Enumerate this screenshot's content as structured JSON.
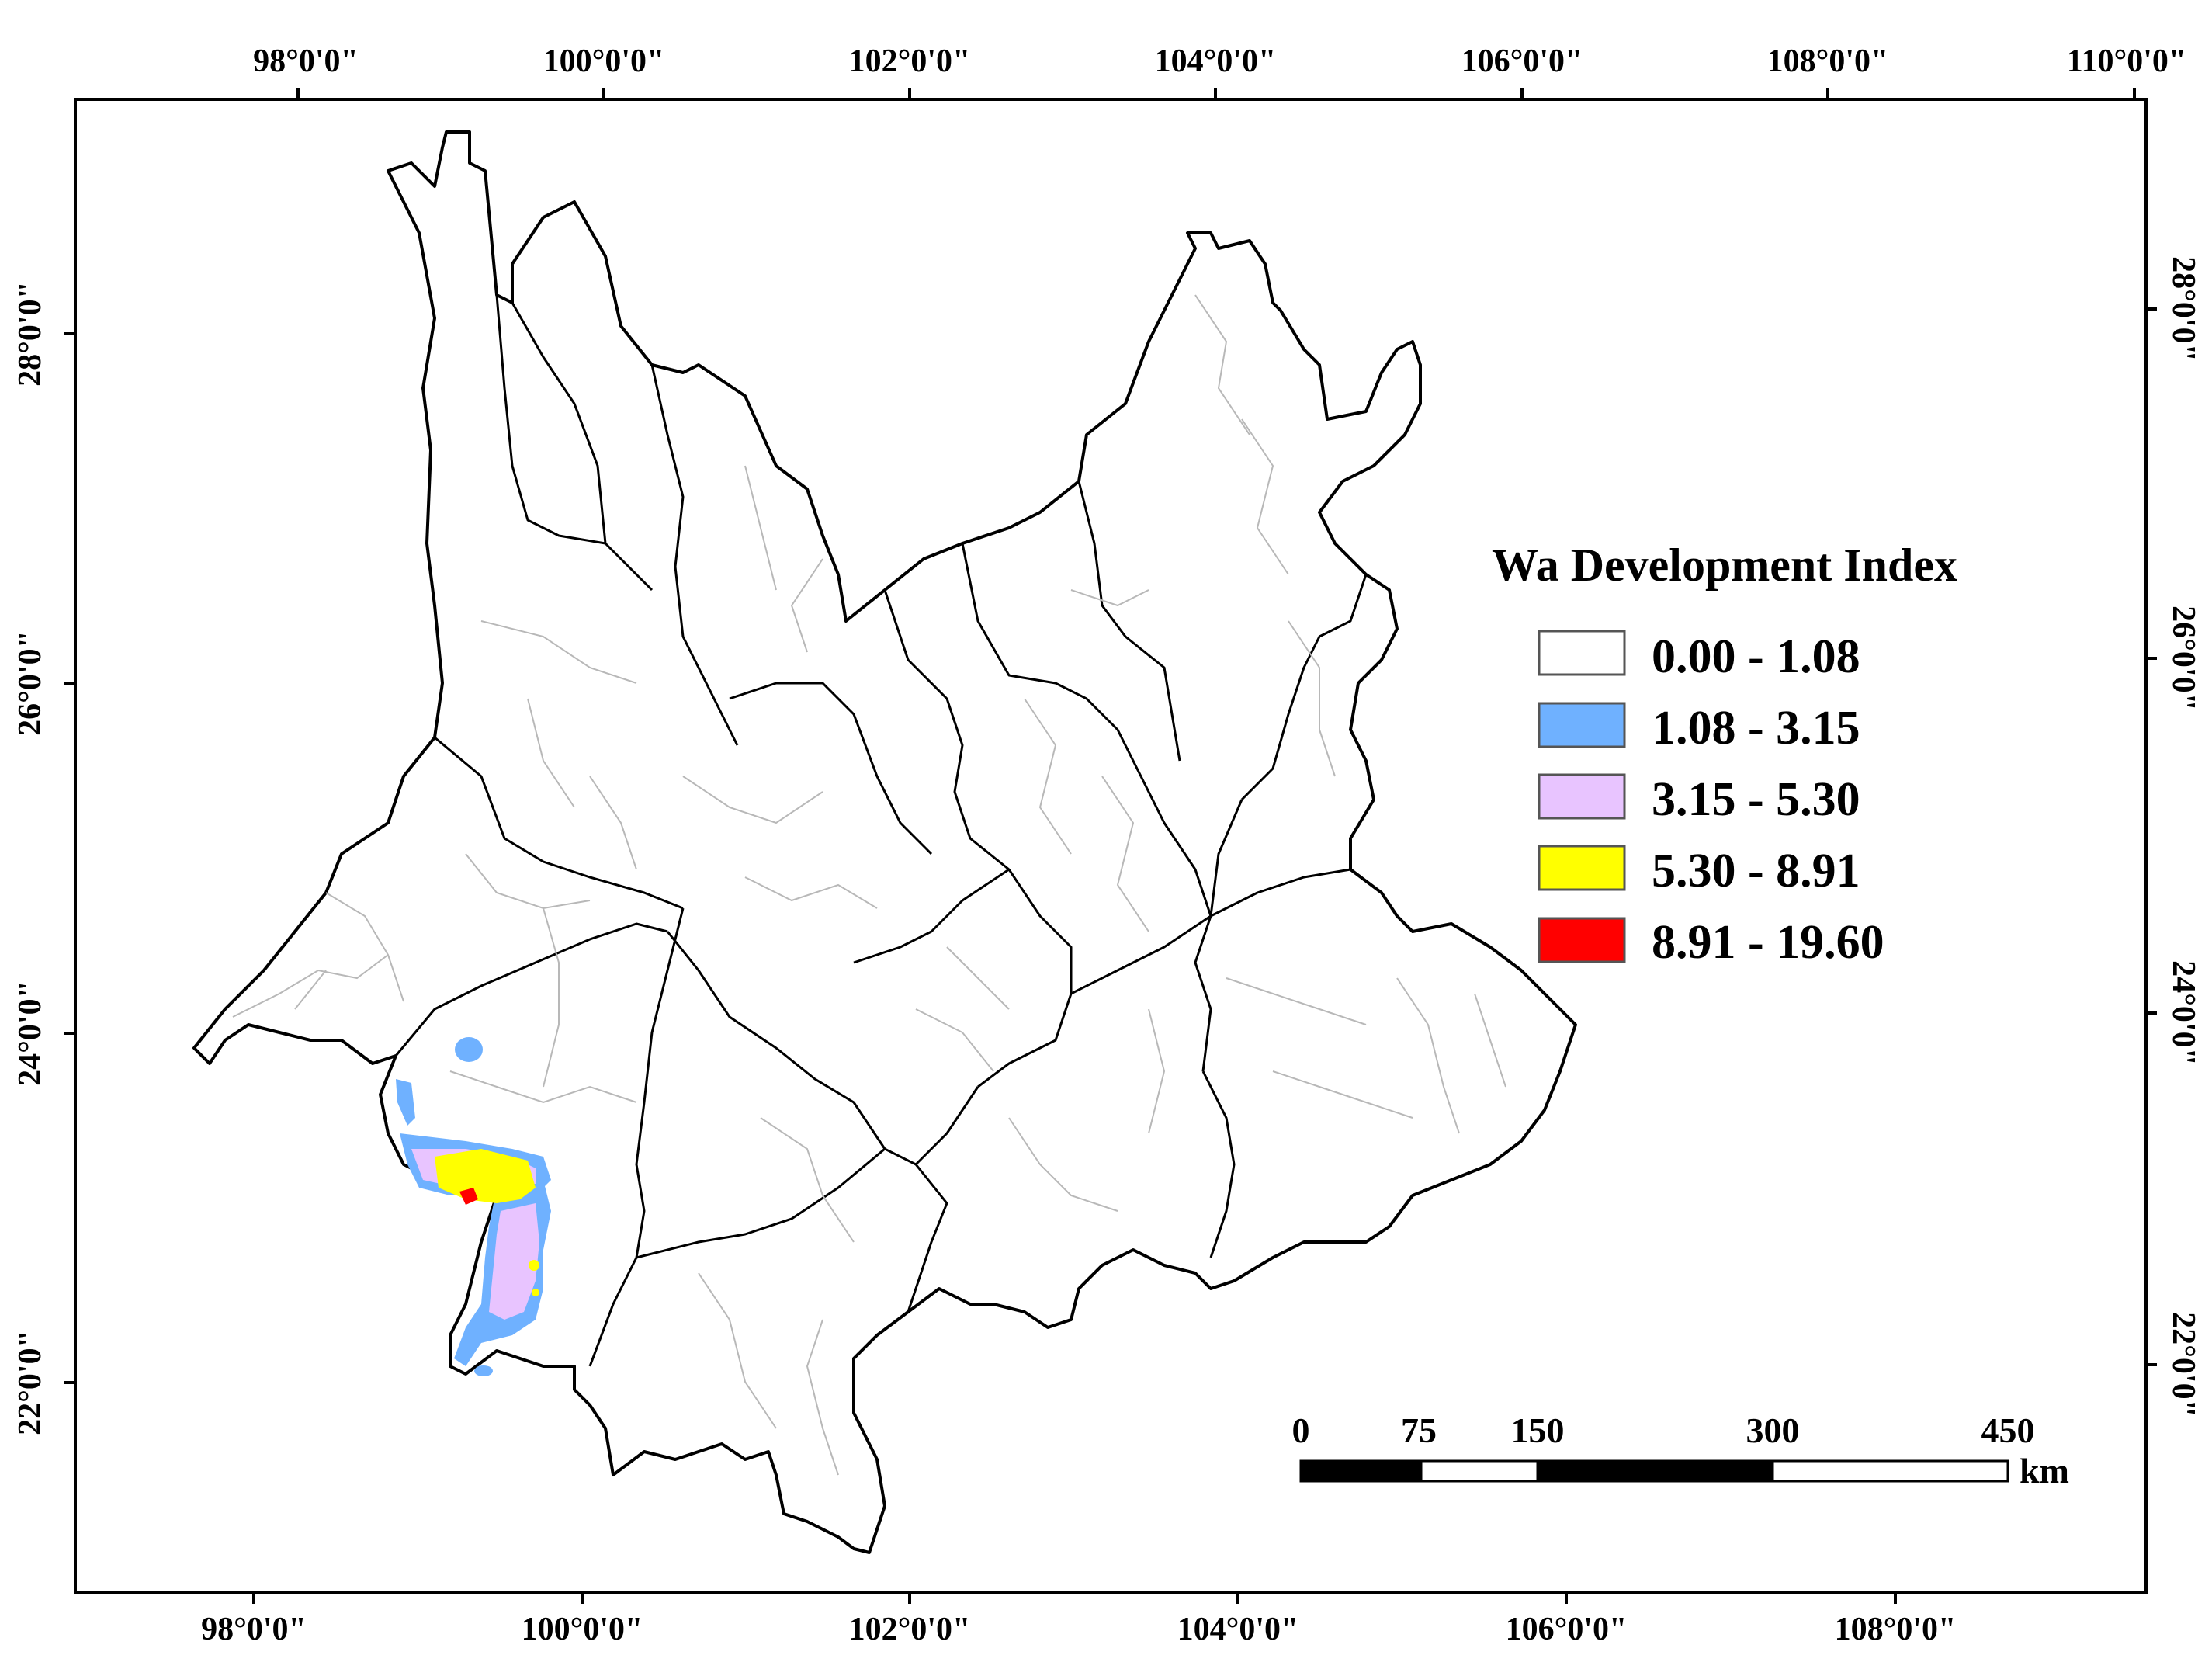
{
  "map": {
    "top_axis_labels": [
      "98°0'0\"",
      "100°0'0\"",
      "102°0'0\"",
      "104°0'0\"",
      "106°0'0\"",
      "108°0'0\"",
      "110°0'0\""
    ],
    "bottom_axis_labels": [
      "98°0'0\"",
      "100°0'0\"",
      "102°0'0\"",
      "104°0'0\"",
      "106°0'0\"",
      "108°0'0\""
    ],
    "left_axis_labels": [
      "28°0'0\"",
      "26°0'0\"",
      "24°0'0\"",
      "22°0'0\""
    ],
    "right_axis_labels": [
      "28°0'0\"",
      "26°0'0\"",
      "24°0'0\"",
      "22°0'0\""
    ]
  },
  "legend": {
    "title": "Wa Development Index",
    "classes": [
      {
        "label": "0.00 - 1.08",
        "color": "#ffffff"
      },
      {
        "label": "1.08 - 3.15",
        "color": "#6fb1ff"
      },
      {
        "label": "3.15 - 5.30",
        "color": "#e8c4ff"
      },
      {
        "label": "5.30 - 8.91",
        "color": "#ffff00"
      },
      {
        "label": "8.91 - 19.60",
        "color": "#ff0000"
      }
    ]
  },
  "scale_bar": {
    "ticks": [
      "0",
      "75",
      "150",
      "300",
      "450"
    ],
    "unit": "km"
  }
}
